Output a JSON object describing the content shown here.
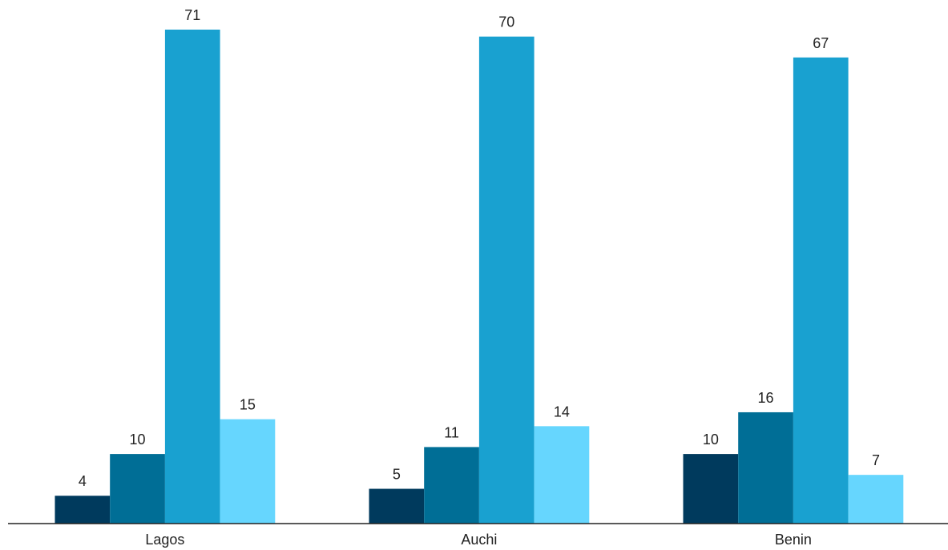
{
  "chart_data": {
    "type": "bar",
    "title": "",
    "xlabel": "",
    "ylabel": "",
    "categories": [
      "Lagos",
      "Auchi",
      "Benin"
    ],
    "series": [
      {
        "values": [
          4,
          5,
          10
        ],
        "color": "#003a5d"
      },
      {
        "values": [
          10,
          11,
          16
        ],
        "color": "#006e96"
      },
      {
        "values": [
          71,
          70,
          67
        ],
        "color": "#19a1d0"
      },
      {
        "values": [
          15,
          14,
          7
        ],
        "color": "#66d6fe"
      }
    ],
    "ylim": [
      0,
      71
    ],
    "grid": false,
    "legend": "none",
    "data_labels": true
  }
}
